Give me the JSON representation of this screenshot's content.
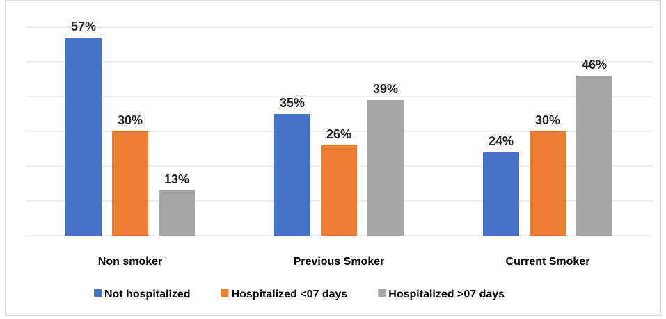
{
  "chart_data": {
    "type": "bar",
    "title": "",
    "xlabel": "",
    "ylabel": "",
    "categories": [
      "Non smoker",
      "Previous Smoker",
      "Current Smoker"
    ],
    "series": [
      {
        "name": "Not hospitalized",
        "color": "#4472c4",
        "values": [
          57,
          35,
          24
        ],
        "labels": [
          "57%",
          "35%",
          "24%"
        ]
      },
      {
        "name": "Hospitalized <07 days",
        "color": "#ed7d31",
        "values": [
          30,
          26,
          30
        ],
        "labels": [
          "30%",
          "26%",
          "30%"
        ]
      },
      {
        "name": "Hospitalized >07 days",
        "color": "#a5a5a5",
        "values": [
          13,
          39,
          46
        ],
        "labels": [
          "13%",
          "39%",
          "46%"
        ]
      }
    ],
    "ylim": [
      0,
      60
    ],
    "gridlines": [
      0,
      10,
      20,
      30,
      40,
      50,
      60
    ],
    "show_y_tick_labels": false,
    "grid": true,
    "legend_position": "bottom"
  }
}
